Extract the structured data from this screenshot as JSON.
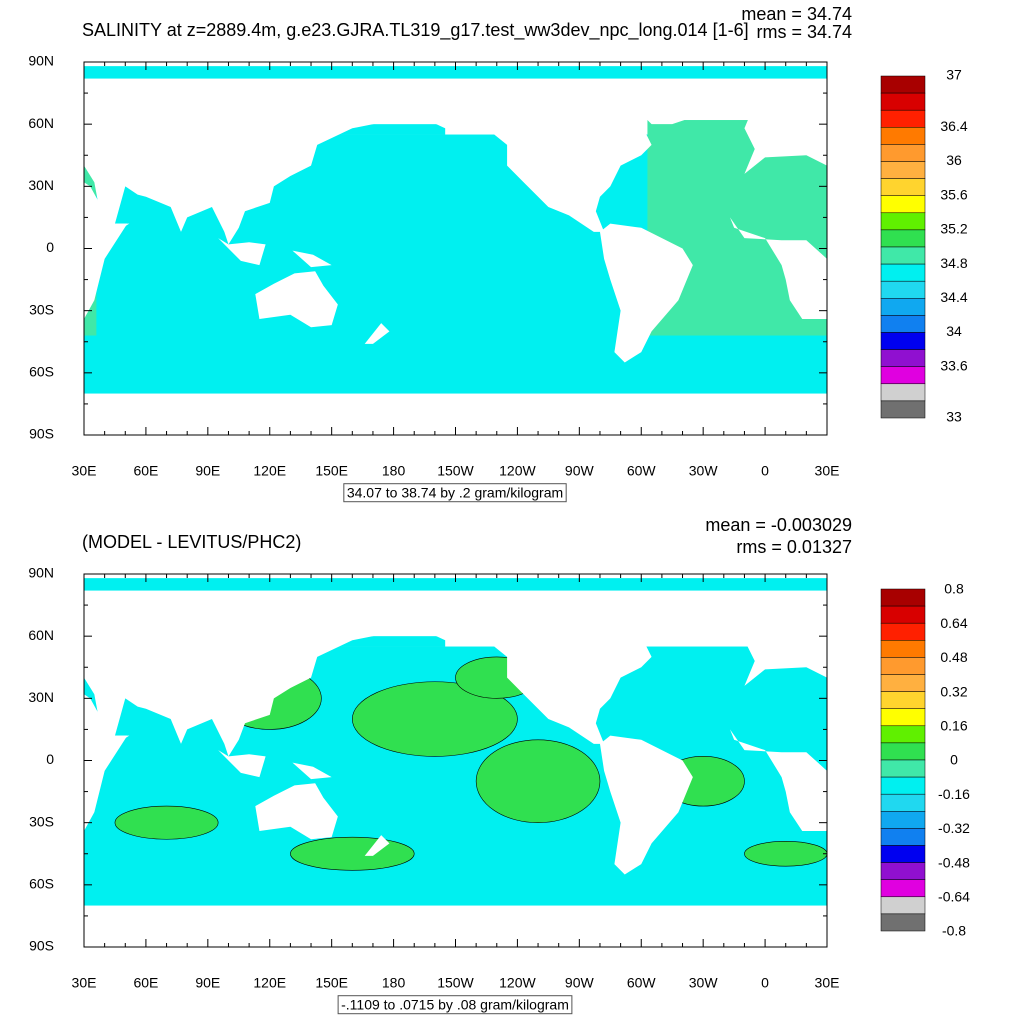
{
  "lon_labels": [
    "30E",
    "60E",
    "90E",
    "120E",
    "150E",
    "180",
    "150W",
    "120W",
    "90W",
    "60W",
    "30W",
    "0",
    "30E"
  ],
  "lat_labels": [
    "90N",
    "60N",
    "30N",
    "0",
    "30S",
    "60S",
    "90S"
  ],
  "panels": [
    {
      "title": "SALINITY at z=2889.4m, g.e23.GJRA.TL319_g17.test_ww3dev_npc_long.014 [1-6]",
      "mean": "mean = 34.74",
      "rms": "rms = 34.74",
      "note": "34.07 to 38.74 by .2 gram/kilogram",
      "colorbar_labels": [
        "37",
        "36.4",
        "36",
        "35.6",
        "35.2",
        "34.8",
        "34.4",
        "34",
        "33.6",
        "33"
      ]
    },
    {
      "title": "(MODEL - LEVITUS/PHC2)",
      "mean": "mean = -0.003029",
      "rms": "rms = 0.01327",
      "note": "-.1109 to .0715 by .08 gram/kilogram",
      "colorbar_labels": [
        "0.8",
        "0.64",
        "0.48",
        "0.32",
        "0.16",
        "0",
        "-0.16",
        "-0.32",
        "-0.48",
        "-0.64",
        "-0.8"
      ]
    }
  ],
  "colorbar_colors": [
    "#a80000",
    "#d80000",
    "#ff2000",
    "#ff7a00",
    "#ff9a2e",
    "#ffb040",
    "#ffd42e",
    "#ffff00",
    "#60f000",
    "#30e050",
    "#40e8a8",
    "#00f0f0",
    "#20d8f0",
    "#10a8f0",
    "#1080f0",
    "#0000f0",
    "#9010d0",
    "#e000e0",
    "#d0d0d0",
    "#707070"
  ]
}
